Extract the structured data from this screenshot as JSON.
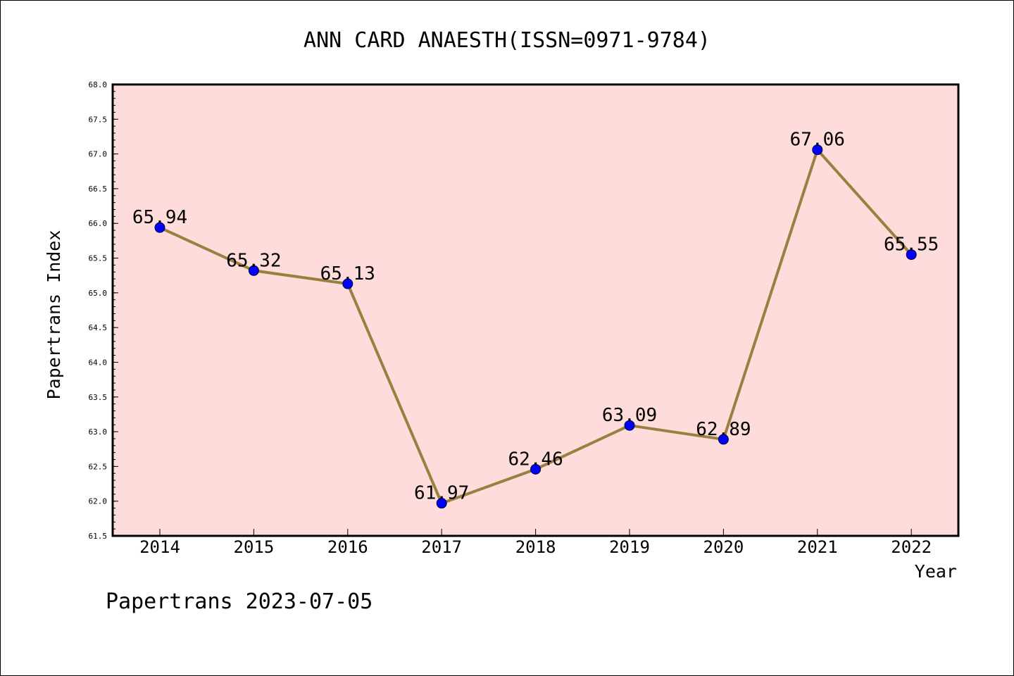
{
  "title": "ANN CARD ANAESTH(ISSN=0971-9784)",
  "footer": "Papertrans 2023-07-05",
  "colors": {
    "plot_background": "#FDDCDB",
    "line": "#9A8040",
    "marker": "#0000FF"
  },
  "chart_data": {
    "type": "line",
    "title": "ANN CARD ANAESTH(ISSN=0971-9784)",
    "xlabel": "Year",
    "ylabel": "Papertrans Index",
    "categories": [
      "2014",
      "2015",
      "2016",
      "2017",
      "2018",
      "2019",
      "2020",
      "2021",
      "2022"
    ],
    "values": [
      65.94,
      65.32,
      65.13,
      61.97,
      62.46,
      63.09,
      62.89,
      67.06,
      65.55
    ],
    "data_labels": [
      "65.94",
      "65.32",
      "65.13",
      "61.97",
      "62.46",
      "63.09",
      "62.89",
      "67.06",
      "65.55"
    ],
    "ylim": [
      61.5,
      68.0
    ],
    "yticks": [
      "61.5",
      "62.0",
      "62.5",
      "63.0",
      "63.5",
      "64.0",
      "64.5",
      "65.0",
      "65.5",
      "66.0",
      "66.5",
      "67.0",
      "67.5",
      "68.0"
    ],
    "grid": false,
    "legend": "none"
  }
}
